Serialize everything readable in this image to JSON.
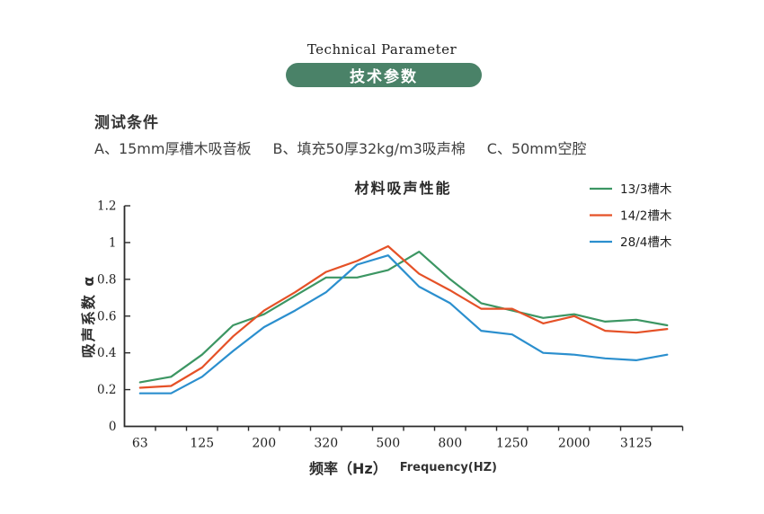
{
  "header": {
    "title_en": "Technical Parameter",
    "title_zh": "技术参数",
    "pill_color": "#4a8268"
  },
  "conditions": {
    "heading": "测试条件",
    "items": [
      "A、15mm厚槽木吸音板",
      "B、填充50厚32kg/m3吸声棉",
      "C、50mm空腔"
    ]
  },
  "chart_data": {
    "type": "line",
    "title": "材料吸声性能",
    "ylabel": "吸声系数 α",
    "xlabel_zh": "频率（Hz）",
    "xlabel_en": "Frequency(HZ)",
    "axis_color": "#2b2b2b",
    "grid": false,
    "legend_position": "top-right",
    "ylim": [
      0,
      1.2
    ],
    "y_tick_values": [
      0,
      0.2,
      0.4,
      0.6,
      0.8,
      1,
      1.2
    ],
    "y_tick_labels": [
      "0",
      "0.2",
      "0.4",
      "0.6",
      "0.8",
      "1",
      "1.2"
    ],
    "n_points": 18,
    "labeled_indices": [
      0,
      2,
      4,
      6,
      8,
      10,
      12,
      14,
      16
    ],
    "x_tick_labels": [
      "63",
      "125",
      "200",
      "320",
      "500",
      "800",
      "1250",
      "2000",
      "3125"
    ],
    "series": [
      {
        "name": "13/3槽木",
        "color": "#3c9663",
        "values": [
          0.24,
          0.27,
          0.39,
          0.55,
          0.61,
          0.71,
          0.81,
          0.81,
          0.85,
          0.95,
          0.8,
          0.67,
          0.63,
          0.59,
          0.61,
          0.57,
          0.58,
          0.55
        ]
      },
      {
        "name": "14/2槽木",
        "color": "#e55127",
        "values": [
          0.21,
          0.22,
          0.32,
          0.49,
          0.63,
          0.73,
          0.84,
          0.9,
          0.98,
          0.83,
          0.74,
          0.64,
          0.64,
          0.56,
          0.6,
          0.52,
          0.51,
          0.53
        ]
      },
      {
        "name": "28/4槽木",
        "color": "#2b8fce",
        "values": [
          0.18,
          0.18,
          0.27,
          0.41,
          0.54,
          0.63,
          0.73,
          0.88,
          0.93,
          0.76,
          0.67,
          0.52,
          0.5,
          0.4,
          0.39,
          0.37,
          0.36,
          0.39
        ]
      }
    ]
  }
}
